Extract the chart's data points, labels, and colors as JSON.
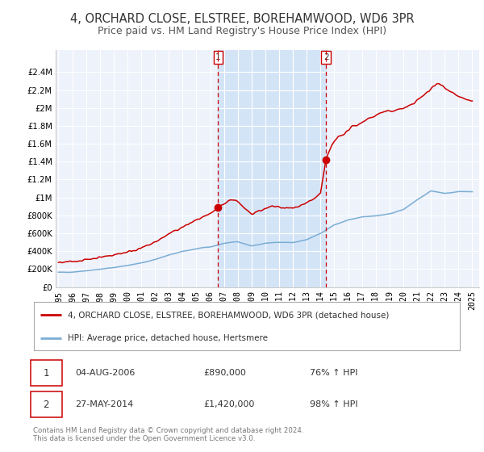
{
  "title": "4, ORCHARD CLOSE, ELSTREE, BOREHAMWOOD, WD6 3PR",
  "subtitle": "Price paid vs. HM Land Registry's House Price Index (HPI)",
  "title_fontsize": 10.5,
  "subtitle_fontsize": 9,
  "xlim": [
    1994.8,
    2025.5
  ],
  "ylim": [
    0,
    2650000
  ],
  "yticks": [
    0,
    200000,
    400000,
    600000,
    800000,
    1000000,
    1200000,
    1400000,
    1600000,
    1800000,
    2000000,
    2200000,
    2400000
  ],
  "ytick_labels": [
    "£0",
    "£200K",
    "£400K",
    "£600K",
    "£800K",
    "£1M",
    "£1.2M",
    "£1.4M",
    "£1.6M",
    "£1.8M",
    "£2M",
    "£2.2M",
    "£2.4M"
  ],
  "xticks": [
    1995,
    1996,
    1997,
    1998,
    1999,
    2000,
    2001,
    2002,
    2003,
    2004,
    2005,
    2006,
    2007,
    2008,
    2009,
    2010,
    2011,
    2012,
    2013,
    2014,
    2015,
    2016,
    2017,
    2018,
    2019,
    2020,
    2021,
    2022,
    2023,
    2024,
    2025
  ],
  "background_color": "#ffffff",
  "plot_bg_color": "#eef2fb",
  "shaded_region": [
    2006.58,
    2014.4
  ],
  "shaded_color": "#d4e4f7",
  "grid_color": "#ffffff",
  "red_line_color": "#cc0000",
  "blue_line_color": "#7aadd4",
  "marker1_x": 2006.58,
  "marker1_y": 890000,
  "marker2_x": 2014.4,
  "marker2_y": 1420000,
  "vline1_x": 2006.58,
  "vline2_x": 2014.4,
  "legend_label_red": "4, ORCHARD CLOSE, ELSTREE, BOREHAMWOOD, WD6 3PR (detached house)",
  "legend_label_blue": "HPI: Average price, detached house, Hertsmere",
  "sale1_label": "1",
  "sale1_date": "04-AUG-2006",
  "sale1_price": "£890,000",
  "sale1_hpi": "76% ↑ HPI",
  "sale2_label": "2",
  "sale2_date": "27-MAY-2014",
  "sale2_price": "£1,420,000",
  "sale2_hpi": "98% ↑ HPI",
  "footnote1": "Contains HM Land Registry data © Crown copyright and database right 2024.",
  "footnote2": "This data is licensed under the Open Government Licence v3.0."
}
